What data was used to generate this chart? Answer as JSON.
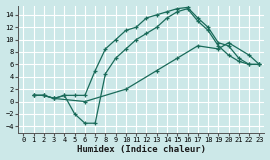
{
  "xlabel": "Humidex (Indice chaleur)",
  "bg_color": "#cce8e8",
  "grid_color": "#ffffff",
  "line_color": "#1a6b5a",
  "xlim": [
    -0.5,
    23.5
  ],
  "ylim": [
    -5,
    15.5
  ],
  "xticks": [
    0,
    1,
    2,
    3,
    4,
    5,
    6,
    7,
    8,
    9,
    10,
    11,
    12,
    13,
    14,
    15,
    16,
    17,
    18,
    19,
    20,
    21,
    22,
    23
  ],
  "yticks": [
    -4,
    -2,
    0,
    2,
    4,
    6,
    8,
    10,
    12,
    14
  ],
  "line1_x": [
    1,
    2,
    3,
    4,
    5,
    6,
    7,
    8,
    9,
    10,
    11,
    12,
    13,
    14,
    15,
    16,
    17,
    18,
    19,
    20,
    21,
    22,
    23
  ],
  "line1_y": [
    1,
    1,
    0.5,
    1,
    1,
    1,
    5,
    8.5,
    10,
    11.5,
    12,
    13.5,
    14,
    14.5,
    15,
    15.2,
    13.5,
    12,
    9.5,
    9,
    7,
    6,
    6
  ],
  "line2_x": [
    1,
    2,
    3,
    4,
    5,
    6,
    7,
    8,
    9,
    10,
    11,
    12,
    13,
    14,
    15,
    16,
    17,
    18,
    19,
    20,
    21,
    22,
    23
  ],
  "line2_y": [
    1,
    1,
    0.5,
    1,
    -2,
    -3.5,
    -3.5,
    4.5,
    7,
    8.5,
    10,
    11,
    12,
    13.5,
    14.5,
    15,
    13,
    11.5,
    9,
    7.5,
    6.5,
    6,
    6
  ],
  "line3_x": [
    1,
    2,
    3,
    6,
    10,
    13,
    15,
    17,
    19,
    20,
    22,
    23
  ],
  "line3_y": [
    1,
    1,
    0.5,
    0,
    2,
    5,
    7,
    9,
    8.5,
    9.5,
    7.5,
    6
  ]
}
